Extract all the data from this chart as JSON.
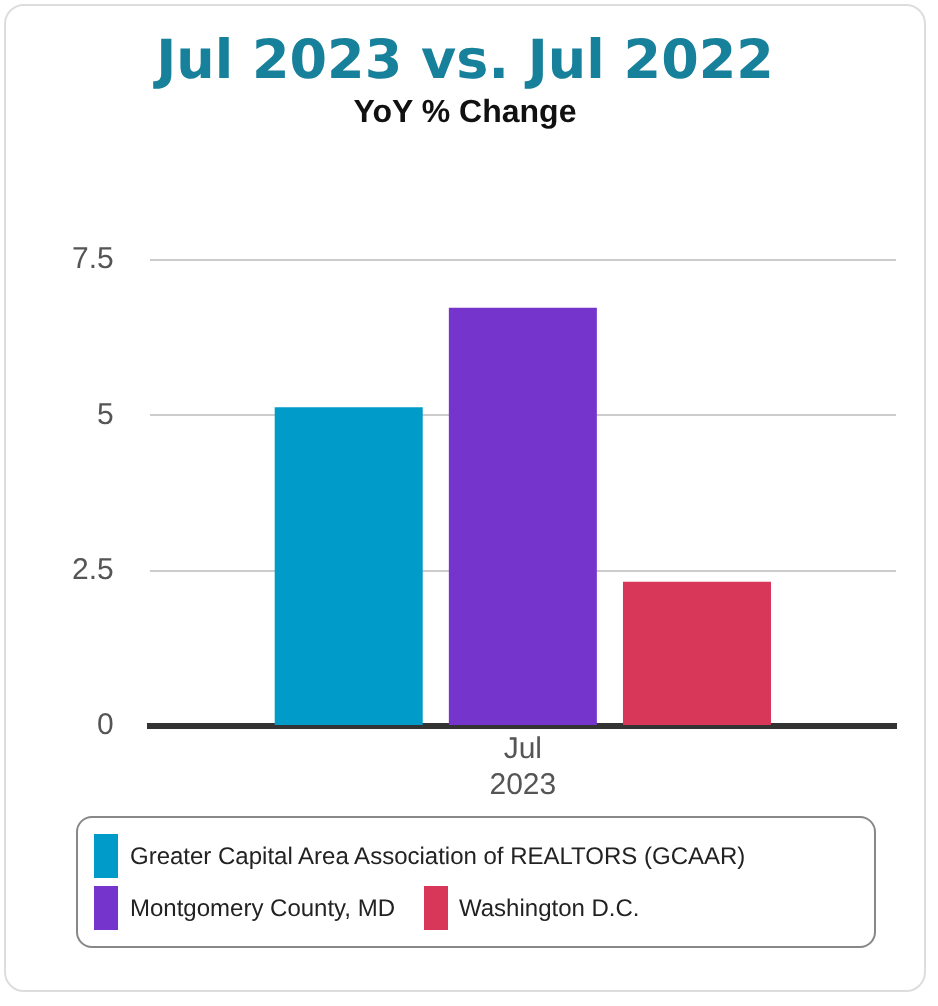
{
  "chart_data": {
    "type": "bar",
    "title": "Jul 2023 vs. Jul 2022",
    "subtitle": "YoY % Change",
    "categories": [
      "Jul\n2023"
    ],
    "series": [
      {
        "name": "Greater Capital Area Association of REALTORS (GCAAR)",
        "color": "#009bc9",
        "values": [
          5.13
        ]
      },
      {
        "name": "Montgomery County, MD",
        "color": "#7535cd",
        "values": [
          6.73
        ]
      },
      {
        "name": "Washington D.C.",
        "color": "#d9375a",
        "values": [
          2.32
        ]
      }
    ],
    "ylim": [
      0,
      7.5
    ],
    "yticks": [
      0,
      2.5,
      5,
      7.5
    ],
    "grid": "y",
    "legend": "bottom"
  }
}
